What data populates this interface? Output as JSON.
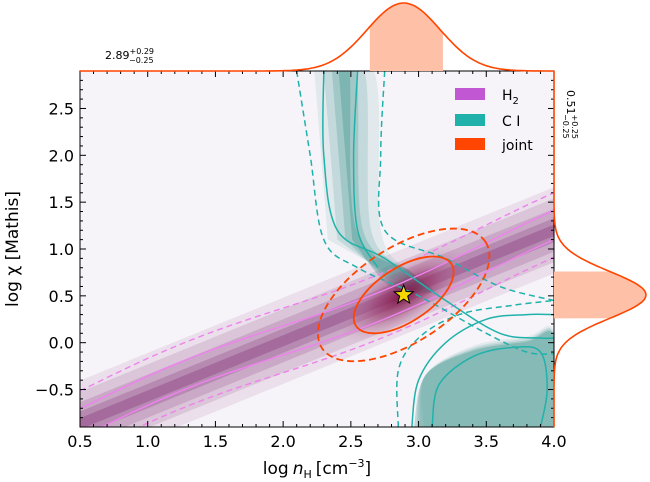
{
  "chart_data": {
    "type": "contour",
    "xlabel_main": "log",
    "xlabel_var": "n",
    "xlabel_sub": "H",
    "xlabel_unit": "[cm",
    "xlabel_exp": "−3",
    "xlabel_close": "]",
    "ylabel": "log χ [Mathis]",
    "xlim": [
      0.5,
      4.0
    ],
    "ylim": [
      -0.9,
      2.9
    ],
    "xticks": [
      0.5,
      1.0,
      1.5,
      2.0,
      2.5,
      3.0,
      3.5,
      4.0
    ],
    "xtick_labels": [
      "0.5",
      "1.0",
      "1.5",
      "2.0",
      "2.5",
      "3.0",
      "3.5",
      "4.0"
    ],
    "yticks": [
      -0.5,
      0.0,
      0.5,
      1.0,
      1.5,
      2.0,
      2.5
    ],
    "ytick_labels": [
      "−0.5",
      "0.0",
      "0.5",
      "1.0",
      "1.5",
      "2.0",
      "2.5"
    ],
    "best_fit": {
      "x": 2.89,
      "y": 0.51,
      "marker": "star",
      "color": "#f5d800"
    },
    "x_estimate": {
      "value": "2.89",
      "plus": "+0.29",
      "minus": "−0.25"
    },
    "y_estimate": {
      "value": "0.51",
      "plus": "+0.25",
      "minus": "−0.25"
    },
    "legend": [
      {
        "label": "H",
        "sub": "2",
        "color": "#c157d3"
      },
      {
        "label": "C I",
        "sub": "",
        "color": "#20b2aa"
      },
      {
        "label": "joint",
        "sub": "",
        "color": "#ff4500"
      }
    ],
    "h2_band": {
      "slope": 0.59,
      "intercept": -1.17,
      "color": "#ee82ee",
      "inner_offsets": [
        -0.14,
        0.17
      ],
      "outer_offsets": [
        -0.33,
        0.36
      ]
    },
    "ci_shape": {
      "color": "#20b2aa",
      "inner": [
        [
          2.3,
          2.9
        ],
        [
          2.3,
          2.0
        ],
        [
          2.4,
          1.2
        ],
        [
          2.75,
          0.9
        ],
        [
          3.2,
          0.45
        ],
        [
          3.6,
          0.1
        ],
        [
          3.9,
          0.05
        ],
        [
          4.0,
          0.05
        ]
      ],
      "inner_left": [
        [
          2.55,
          2.9
        ],
        [
          2.52,
          2.0
        ],
        [
          2.55,
          1.2
        ],
        [
          2.7,
          0.8
        ]
      ],
      "outer": [
        [
          2.1,
          2.9
        ],
        [
          2.2,
          2.0
        ],
        [
          2.3,
          1.1
        ],
        [
          2.55,
          0.8
        ],
        [
          3.0,
          0.5
        ],
        [
          3.5,
          0.1
        ],
        [
          3.8,
          -0.1
        ],
        [
          4.0,
          -0.12
        ]
      ],
      "outer_right": [
        [
          2.75,
          2.9
        ],
        [
          2.72,
          2.0
        ],
        [
          2.75,
          1.2
        ],
        [
          3.2,
          0.9
        ],
        [
          3.6,
          0.6
        ],
        [
          4.0,
          0.45
        ]
      ],
      "lower_branch": [
        [
          2.95,
          -0.9
        ],
        [
          3.0,
          -0.4
        ],
        [
          3.2,
          0.0
        ],
        [
          3.5,
          0.25
        ],
        [
          3.8,
          0.3
        ],
        [
          4.0,
          0.3
        ]
      ],
      "lower_branch_outer": [
        [
          2.85,
          -0.9
        ],
        [
          2.85,
          -0.3
        ],
        [
          3.0,
          0.05
        ],
        [
          3.3,
          0.3
        ],
        [
          3.7,
          0.4
        ],
        [
          4.0,
          0.45
        ]
      ],
      "lower_inner": [
        [
          3.1,
          -0.9
        ],
        [
          3.15,
          -0.45
        ],
        [
          3.4,
          -0.15
        ],
        [
          3.7,
          -0.05
        ],
        [
          3.9,
          -0.1
        ],
        [
          3.95,
          -0.5
        ],
        [
          3.9,
          -0.9
        ]
      ]
    },
    "joint_ellipses": {
      "center": [
        2.89,
        0.51
      ],
      "angle_deg": 33,
      "inner_axes": [
        0.42,
        0.2
      ],
      "outer_axes": [
        0.72,
        0.35
      ],
      "color": "#ff4500"
    },
    "x_marginal": {
      "mean": 2.89,
      "sigma": 0.27,
      "shade_range": [
        2.64,
        3.18
      ],
      "fill": "#ffc0a8"
    },
    "y_marginal": {
      "mean": 0.51,
      "sigma": 0.25,
      "shade_range": [
        0.26,
        0.76
      ],
      "fill": "#ffc0a8"
    }
  }
}
